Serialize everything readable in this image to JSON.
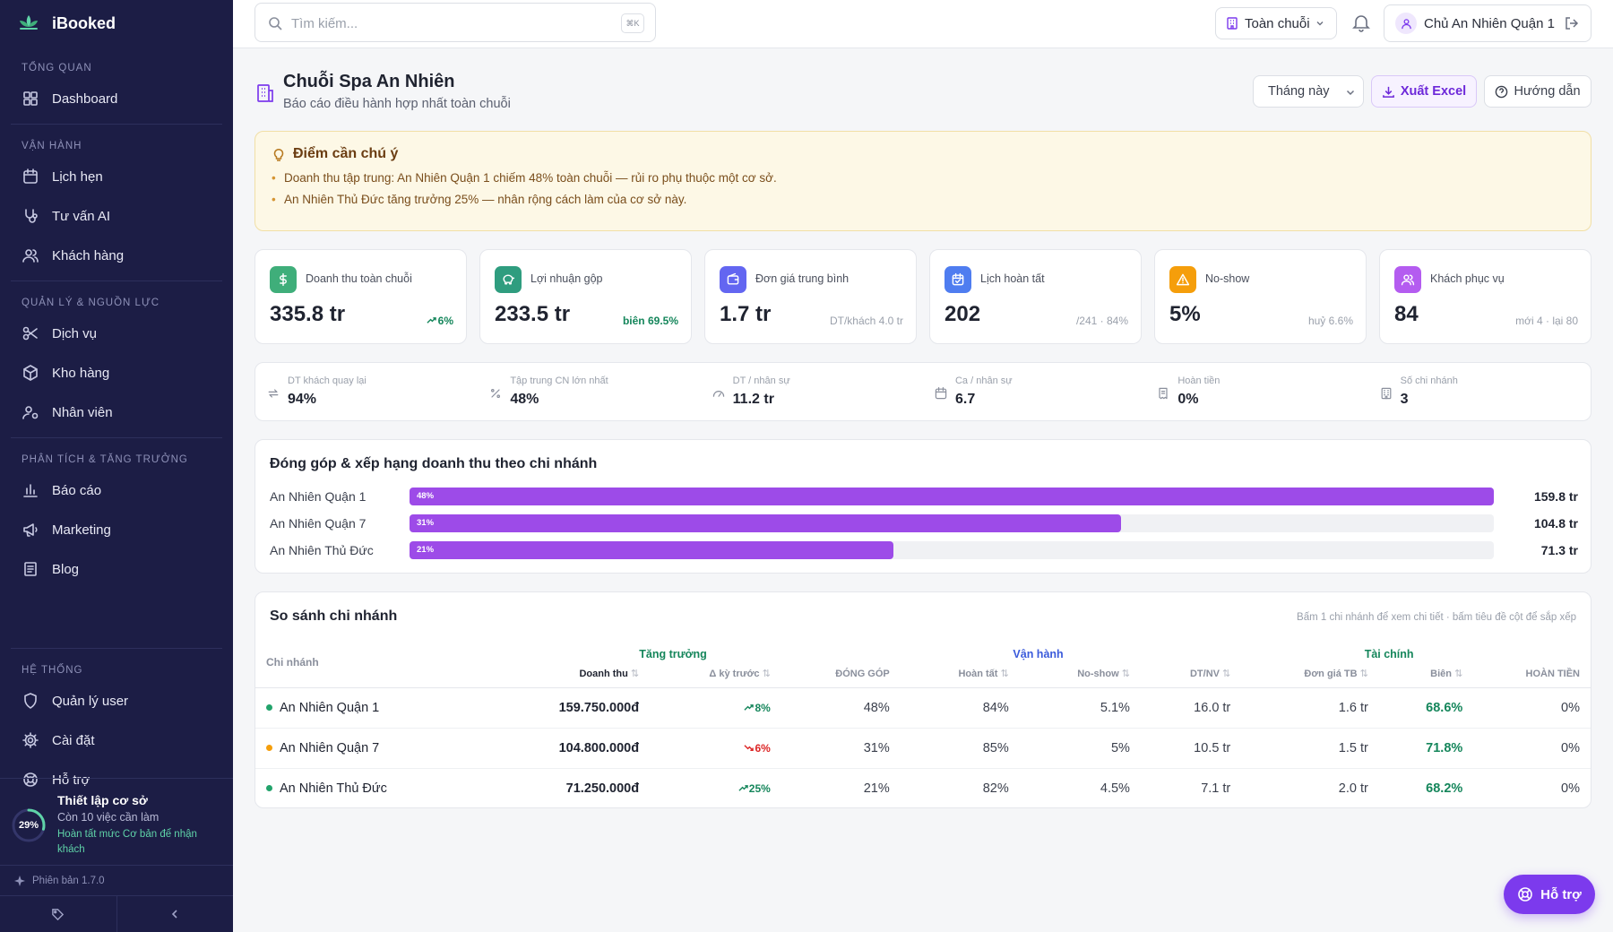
{
  "app": {
    "name": "iBooked"
  },
  "sidebar": {
    "sections": [
      {
        "title": "TỔNG QUAN",
        "items": [
          {
            "label": "Dashboard",
            "icon": "grid-icon"
          }
        ]
      },
      {
        "title": "VẬN HÀNH",
        "items": [
          {
            "label": "Lịch hẹn",
            "icon": "calendar-icon"
          },
          {
            "label": "Tư vấn AI",
            "icon": "stethoscope-icon"
          },
          {
            "label": "Khách hàng",
            "icon": "users-icon"
          }
        ]
      },
      {
        "title": "QUẢN LÝ & NGUỒN LỰC",
        "items": [
          {
            "label": "Dịch vụ",
            "icon": "scissors-icon"
          },
          {
            "label": "Kho hàng",
            "icon": "package-icon"
          },
          {
            "label": "Nhân viên",
            "icon": "user-cog-icon"
          }
        ]
      },
      {
        "title": "PHÂN TÍCH & TĂNG TRƯỞNG",
        "items": [
          {
            "label": "Báo cáo",
            "icon": "bar-chart-icon"
          },
          {
            "label": "Marketing",
            "icon": "megaphone-icon"
          },
          {
            "label": "Blog",
            "icon": "newspaper-icon"
          }
        ]
      },
      {
        "title": "HỆ THỐNG",
        "items": [
          {
            "label": "Quản lý user",
            "icon": "shield-icon"
          },
          {
            "label": "Cài đặt",
            "icon": "gear-icon"
          },
          {
            "label": "Hỗ trợ",
            "icon": "lifebuoy-icon"
          }
        ]
      }
    ],
    "setup": {
      "progress_label": "29%",
      "progress": 0.29,
      "title": "Thiết lập cơ sở",
      "subtitle": "Còn 10 việc cần làm",
      "hint": "Hoàn tất mức Cơ bản để nhận khách"
    },
    "version": "Phiên bản 1.7.0"
  },
  "topbar": {
    "search_placeholder": "Tìm kiếm...",
    "search_shortcut": "⌘K",
    "scope": "Toàn chuỗi",
    "user": "Chủ An Nhiên Quận 1"
  },
  "header": {
    "title": "Chuỗi Spa An Nhiên",
    "subtitle": "Báo cáo điều hành hợp nhất toàn chuỗi",
    "period": "Tháng này",
    "export_label": "Xuất Excel",
    "guide_label": "Hướng dẫn"
  },
  "alert": {
    "title": "Điểm cần chú ý",
    "items": [
      "Doanh thu tập trung: An Nhiên Quận 1 chiếm 48% toàn chuỗi — rủi ro phụ thuộc một cơ sở.",
      "An Nhiên Thủ Đức tăng trưởng 25% — nhân rộng cách làm của cơ sở này."
    ]
  },
  "kpis": [
    {
      "label": "Doanh thu toàn chuỗi",
      "value": "335.8 tr",
      "sub": "6%",
      "color": "#3fae7a",
      "icon": "dollar-icon"
    },
    {
      "label": "Lợi nhuận gộp",
      "value": "233.5 tr",
      "sub": "biên 69.5%",
      "color": "#2f9d7f",
      "icon": "piggy-bank-icon"
    },
    {
      "label": "Đơn giá trung bình",
      "value": "1.7 tr",
      "sub": "DT/khách 4.0 tr",
      "color": "#6366f1",
      "icon": "wallet-icon"
    },
    {
      "label": "Lịch hoàn tất",
      "value": "202",
      "sub": "/241 · 84%",
      "color": "#4f7df0",
      "icon": "calendar-check-icon"
    },
    {
      "label": "No-show",
      "value": "5%",
      "sub": "huỷ 6.6%",
      "color": "#f59e0b",
      "icon": "warning-icon"
    },
    {
      "label": "Khách phục vụ",
      "value": "84",
      "sub": "mới 4 · lại 80",
      "color": "#b45cf0",
      "icon": "users-icon"
    }
  ],
  "stats": [
    {
      "label": "DT khách quay lại",
      "value": "94%",
      "icon": "repeat-icon"
    },
    {
      "label": "Tập trung CN lớn nhất",
      "value": "48%",
      "icon": "percent-icon"
    },
    {
      "label": "DT / nhân sự",
      "value": "11.2 tr",
      "icon": "gauge-icon"
    },
    {
      "label": "Ca / nhân sự",
      "value": "6.7",
      "icon": "calendar-icon"
    },
    {
      "label": "Hoàn tiền",
      "value": "0%",
      "icon": "receipt-icon"
    },
    {
      "label": "Số chi nhánh",
      "value": "3",
      "icon": "building-icon"
    }
  ],
  "contribution": {
    "title": "Đóng góp & xếp hạng doanh thu theo chi nhánh",
    "rows": [
      {
        "name": "An Nhiên Quận 1",
        "pct_label": "48%",
        "share": 1.0,
        "value": "159.8 tr"
      },
      {
        "name": "An Nhiên Quận 7",
        "pct_label": "31%",
        "share": 0.656,
        "value": "104.8 tr"
      },
      {
        "name": "An Nhiên Thủ Đức",
        "pct_label": "21%",
        "share": 0.446,
        "value": "71.3 tr"
      }
    ]
  },
  "compare": {
    "title": "So sánh chi nhánh",
    "hint": "Bấm 1 chi nhánh để xem chi tiết · bấm tiêu đề cột để sắp xếp",
    "groups": {
      "growth": "Tăng trưởng",
      "ops": "Vận hành",
      "finance": "Tài chính"
    },
    "branch_header": "Chi nhánh",
    "columns": [
      "Doanh thu",
      "Δ kỳ trước",
      "ĐÓNG GÓP",
      "Hoàn tất",
      "No-show",
      "DT/NV",
      "Đơn giá TB",
      "Biên",
      "HOÀN TIỀN"
    ],
    "sort_icon": "⇅",
    "rows": [
      {
        "name": "An Nhiên Quận 1",
        "dot": "#22a36b",
        "revenue": "159.750.000đ",
        "delta": "8%",
        "dir": "up",
        "share": "48%",
        "done": "84%",
        "noshow": "5.1%",
        "dtnv": "16.0 tr",
        "avg": "1.6 tr",
        "margin": "68.6%",
        "refund": "0%"
      },
      {
        "name": "An Nhiên Quận 7",
        "dot": "#f59e0b",
        "revenue": "104.800.000đ",
        "delta": "6%",
        "dir": "down",
        "share": "31%",
        "done": "85%",
        "noshow": "5%",
        "dtnv": "10.5 tr",
        "avg": "1.5 tr",
        "margin": "71.8%",
        "refund": "0%"
      },
      {
        "name": "An Nhiên Thủ Đức",
        "dot": "#22a36b",
        "revenue": "71.250.000đ",
        "delta": "25%",
        "dir": "up",
        "share": "21%",
        "done": "82%",
        "noshow": "4.5%",
        "dtnv": "7.1 tr",
        "avg": "2.0 tr",
        "margin": "68.2%",
        "refund": "0%"
      }
    ]
  },
  "fab": {
    "label": "Hỗ trợ"
  }
}
